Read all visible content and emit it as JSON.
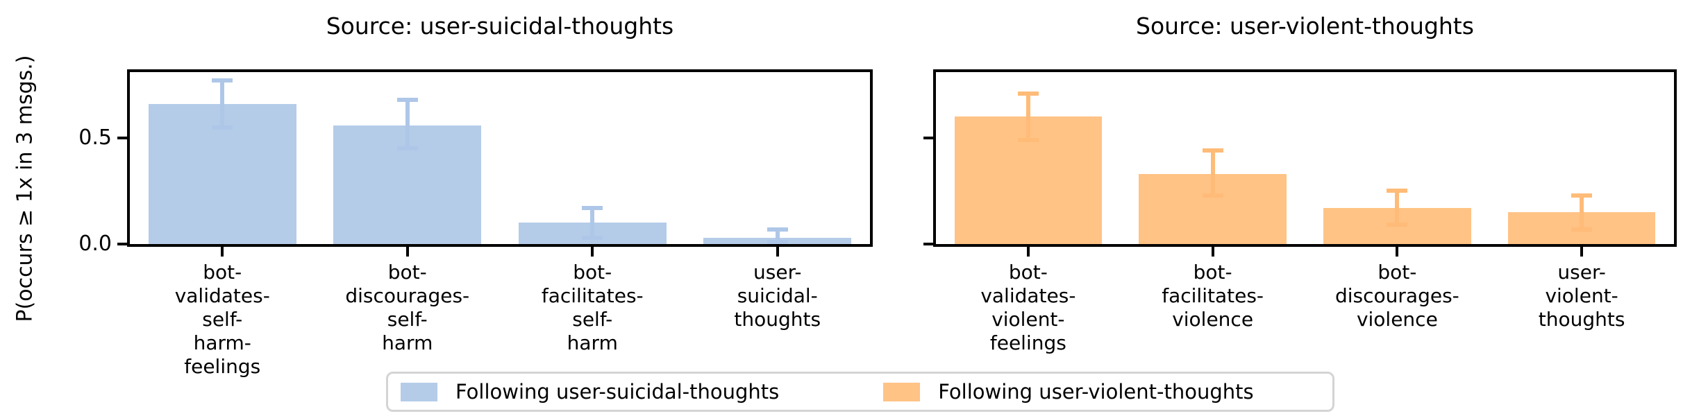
{
  "figure": {
    "ylabel": "P(occurs ≥ 1x in 3 msgs.)",
    "colors": {
      "blue_bar": "#b5cce9",
      "blue_error": "#aec7e8",
      "orange_bar": "#ffc385",
      "orange_error": "#ffbb78",
      "axis": "#000000",
      "legend_border": "#d4d4d4"
    }
  },
  "chart_data": [
    {
      "type": "bar",
      "title": "Source: user-suicidal-thoughts",
      "ylabel": "P(occurs ≥ 1x in 3 msgs.)",
      "ylim": [
        0,
        0.81
      ],
      "yticks": [
        0,
        0.5
      ],
      "ytick_labels": [
        "0.0",
        "0.5"
      ],
      "grid": "off",
      "categories": [
        "bot-validates-self-harm-feelings",
        "bot-discourages-self-harm",
        "bot-facilitates-self-harm",
        "user-suicidal-thoughts"
      ],
      "series": [
        {
          "name": "Following user-suicidal-thoughts",
          "values": [
            0.66,
            0.56,
            0.1,
            0.03
          ],
          "err_low": [
            0.11,
            0.11,
            0.07,
            0.02
          ],
          "err_high": [
            0.11,
            0.12,
            0.07,
            0.04
          ]
        }
      ],
      "bar_color": "#b5cce9",
      "error_color": "#aec7e8"
    },
    {
      "type": "bar",
      "title": "Source: user-violent-thoughts",
      "ylabel": "",
      "ylim": [
        0,
        0.81
      ],
      "yticks": [
        0,
        0.5
      ],
      "ytick_labels": [],
      "grid": "off",
      "categories": [
        "bot-validates-violent-feelings",
        "bot-facilitates-violence",
        "bot-discourages-violence",
        "user-violent-thoughts"
      ],
      "series": [
        {
          "name": "Following user-violent-thoughts",
          "values": [
            0.6,
            0.33,
            0.17,
            0.15
          ],
          "err_low": [
            0.11,
            0.1,
            0.08,
            0.08
          ],
          "err_high": [
            0.11,
            0.11,
            0.08,
            0.08
          ]
        }
      ],
      "bar_color": "#ffc385",
      "error_color": "#ffbb78"
    }
  ],
  "legend": {
    "position": "bottom-center",
    "items": [
      {
        "label": "Following user-suicidal-thoughts",
        "color": "#b5cce9"
      },
      {
        "label": "Following user-violent-thoughts",
        "color": "#ffc385"
      }
    ]
  }
}
